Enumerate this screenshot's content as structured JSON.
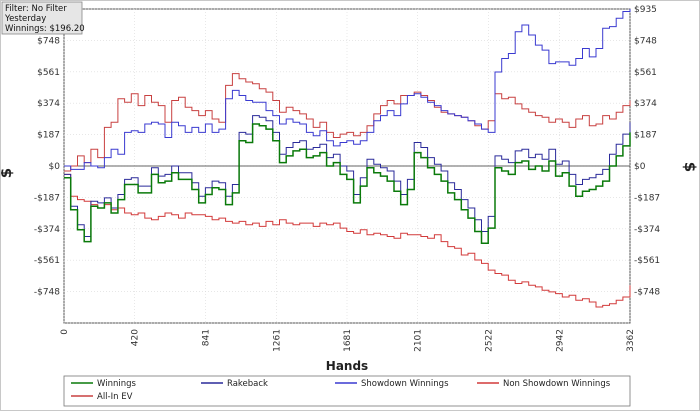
{
  "info_box": {
    "lines": [
      "Filter: No Filter",
      "Yesterday",
      "Winnings: $196.20"
    ]
  },
  "chart_data": {
    "type": "line",
    "xlabel": "Hands",
    "ylabel_left": "$",
    "ylabel_right": "$",
    "xlim": [
      0,
      3362
    ],
    "ylim": [
      -935,
      935
    ],
    "x_ticks": [
      0,
      420,
      841,
      1261,
      1681,
      2101,
      2522,
      2942,
      3362
    ],
    "y_ticks": [
      935,
      748,
      561,
      374,
      187,
      0,
      -187,
      -374,
      -561,
      -748,
      -935
    ],
    "y_tick_labels": [
      "$935",
      "$748",
      "$561",
      "$374",
      "$187",
      "$0",
      "-$187",
      "-$374",
      "-$561",
      "-$748",
      ""
    ],
    "grid": true,
    "legend_position": "bottom",
    "series": [
      {
        "name": "Winnings",
        "color": "#0a7a0a",
        "x": [
          0,
          40,
          80,
          120,
          160,
          200,
          240,
          280,
          320,
          360,
          400,
          440,
          480,
          520,
          560,
          600,
          640,
          680,
          720,
          760,
          800,
          840,
          880,
          920,
          960,
          1000,
          1040,
          1080,
          1120,
          1160,
          1200,
          1240,
          1280,
          1320,
          1360,
          1400,
          1440,
          1480,
          1520,
          1560,
          1600,
          1640,
          1680,
          1720,
          1760,
          1800,
          1840,
          1880,
          1920,
          1960,
          2000,
          2040,
          2080,
          2120,
          2160,
          2200,
          2240,
          2280,
          2320,
          2360,
          2400,
          2440,
          2480,
          2520,
          2560,
          2600,
          2640,
          2680,
          2720,
          2760,
          2800,
          2840,
          2880,
          2920,
          2960,
          3000,
          3040,
          3080,
          3120,
          3160,
          3200,
          3240,
          3280,
          3320,
          3362
        ],
        "values": [
          -70,
          -260,
          -380,
          -450,
          -240,
          -250,
          -220,
          -280,
          -200,
          -110,
          -110,
          -160,
          -160,
          -50,
          -100,
          -90,
          -40,
          -80,
          -80,
          -140,
          -220,
          -170,
          -130,
          -140,
          -230,
          -160,
          150,
          140,
          250,
          240,
          220,
          150,
          20,
          60,
          90,
          100,
          50,
          60,
          80,
          0,
          20,
          -50,
          -80,
          -220,
          -120,
          -10,
          -40,
          -60,
          -90,
          -150,
          -230,
          -140,
          80,
          50,
          -10,
          -50,
          -90,
          -160,
          -200,
          -260,
          -310,
          -390,
          -460,
          -370,
          -10,
          -30,
          -50,
          20,
          30,
          -20,
          0,
          -30,
          30,
          -60,
          -40,
          -120,
          -180,
          -150,
          -140,
          -120,
          -90,
          0,
          60,
          120,
          200
        ],
        "width": 1.5
      },
      {
        "name": "Rakeback",
        "color": "#2a2a9a",
        "x": [
          0,
          40,
          80,
          120,
          160,
          200,
          240,
          280,
          320,
          360,
          400,
          440,
          480,
          520,
          560,
          600,
          640,
          680,
          720,
          760,
          800,
          840,
          880,
          920,
          960,
          1000,
          1040,
          1080,
          1120,
          1160,
          1200,
          1240,
          1280,
          1320,
          1360,
          1400,
          1440,
          1480,
          1520,
          1560,
          1600,
          1640,
          1680,
          1720,
          1760,
          1800,
          1840,
          1880,
          1920,
          1960,
          2000,
          2040,
          2080,
          2120,
          2160,
          2200,
          2240,
          2280,
          2320,
          2360,
          2400,
          2440,
          2480,
          2520,
          2560,
          2600,
          2640,
          2680,
          2720,
          2760,
          2800,
          2840,
          2880,
          2920,
          2960,
          3000,
          3040,
          3080,
          3120,
          3160,
          3200,
          3240,
          3280,
          3320,
          3362
        ],
        "values": [
          -50,
          -240,
          -350,
          -420,
          -210,
          -220,
          -190,
          -250,
          -170,
          -80,
          -70,
          -120,
          -120,
          -10,
          -60,
          -50,
          0,
          -40,
          -40,
          -100,
          -180,
          -130,
          -90,
          -100,
          -180,
          -110,
          200,
          190,
          300,
          290,
          270,
          200,
          70,
          110,
          140,
          150,
          100,
          110,
          130,
          50,
          70,
          0,
          -30,
          -170,
          -70,
          40,
          10,
          -10,
          -30,
          -90,
          -170,
          -80,
          140,
          110,
          50,
          10,
          -30,
          -100,
          -140,
          -200,
          -250,
          -320,
          -390,
          -300,
          60,
          40,
          20,
          90,
          100,
          50,
          70,
          40,
          100,
          10,
          30,
          -50,
          -110,
          -80,
          -70,
          -50,
          -20,
          70,
          130,
          190,
          260
        ],
        "width": 1
      },
      {
        "name": "Showdown Winnings",
        "color": "#3a3ad0",
        "x": [
          0,
          40,
          80,
          120,
          160,
          200,
          240,
          280,
          320,
          360,
          400,
          440,
          480,
          520,
          560,
          600,
          640,
          680,
          720,
          760,
          800,
          840,
          880,
          920,
          960,
          1000,
          1040,
          1080,
          1120,
          1160,
          1200,
          1240,
          1280,
          1320,
          1360,
          1400,
          1440,
          1480,
          1520,
          1560,
          1600,
          1640,
          1680,
          1720,
          1760,
          1800,
          1840,
          1880,
          1920,
          1960,
          2000,
          2040,
          2080,
          2120,
          2160,
          2200,
          2240,
          2280,
          2320,
          2360,
          2400,
          2440,
          2480,
          2520,
          2560,
          2600,
          2640,
          2680,
          2720,
          2760,
          2800,
          2840,
          2880,
          2920,
          2960,
          3000,
          3040,
          3080,
          3120,
          3160,
          3200,
          3240,
          3280,
          3320,
          3362
        ],
        "values": [
          0,
          -20,
          -20,
          20,
          0,
          -10,
          50,
          100,
          70,
          200,
          210,
          200,
          250,
          260,
          250,
          170,
          260,
          240,
          200,
          230,
          200,
          250,
          200,
          220,
          400,
          450,
          420,
          390,
          380,
          380,
          330,
          300,
          250,
          280,
          260,
          250,
          200,
          180,
          210,
          150,
          120,
          140,
          150,
          130,
          150,
          200,
          270,
          300,
          330,
          300,
          370,
          420,
          430,
          410,
          380,
          360,
          330,
          310,
          300,
          290,
          270,
          250,
          220,
          200,
          560,
          640,
          670,
          800,
          840,
          780,
          720,
          690,
          610,
          620,
          620,
          600,
          640,
          700,
          650,
          700,
          820,
          830,
          880,
          920,
          935
        ],
        "width": 1
      },
      {
        "name": "Non Showdown Winnings",
        "color": "#d23a3a",
        "x": [
          0,
          40,
          80,
          120,
          160,
          200,
          240,
          280,
          320,
          360,
          400,
          440,
          480,
          520,
          560,
          600,
          640,
          680,
          720,
          760,
          800,
          840,
          880,
          920,
          960,
          1000,
          1040,
          1080,
          1120,
          1160,
          1200,
          1240,
          1280,
          1320,
          1360,
          1400,
          1440,
          1480,
          1520,
          1560,
          1600,
          1640,
          1680,
          1720,
          1760,
          1800,
          1840,
          1880,
          1920,
          1960,
          2000,
          2040,
          2080,
          2120,
          2160,
          2200,
          2240,
          2280,
          2320,
          2360,
          2400,
          2440,
          2480,
          2520,
          2560,
          2600,
          2640,
          2680,
          2720,
          2760,
          2800,
          2840,
          2880,
          2920,
          2960,
          3000,
          3040,
          3080,
          3120,
          3160,
          3200,
          3240,
          3280,
          3320,
          3362
        ],
        "values": [
          -50,
          -180,
          -200,
          -210,
          -230,
          -250,
          -230,
          -260,
          -250,
          -280,
          -290,
          -280,
          -310,
          -320,
          -300,
          -280,
          -290,
          -310,
          -280,
          -290,
          -290,
          -300,
          -320,
          -310,
          -330,
          -340,
          -330,
          -350,
          -340,
          -360,
          -330,
          -350,
          -320,
          -340,
          -350,
          -340,
          -340,
          -360,
          -340,
          -350,
          -340,
          -370,
          -390,
          -400,
          -380,
          -410,
          -400,
          -410,
          -420,
          -430,
          -400,
          -410,
          -410,
          -420,
          -430,
          -410,
          -450,
          -480,
          -490,
          -530,
          -520,
          -560,
          -580,
          -620,
          -640,
          -650,
          -680,
          -700,
          -690,
          -710,
          -720,
          -740,
          -750,
          -760,
          -780,
          -770,
          -800,
          -790,
          -810,
          -840,
          -830,
          -820,
          -800,
          -780,
          -710
        ],
        "width": 1
      },
      {
        "name": "All-In EV",
        "color": "#c84040",
        "x": [
          0,
          40,
          80,
          120,
          160,
          200,
          240,
          280,
          320,
          360,
          400,
          440,
          480,
          520,
          560,
          600,
          640,
          680,
          720,
          760,
          800,
          840,
          880,
          920,
          960,
          1000,
          1040,
          1080,
          1120,
          1160,
          1200,
          1240,
          1280,
          1320,
          1360,
          1400,
          1440,
          1480,
          1520,
          1560,
          1600,
          1640,
          1680,
          1720,
          1760,
          1800,
          1840,
          1880,
          1920,
          1960,
          2000,
          2040,
          2080,
          2120,
          2160,
          2200,
          2240,
          2280,
          2320,
          2360,
          2400,
          2440,
          2480,
          2520,
          2560,
          2600,
          2640,
          2680,
          2720,
          2760,
          2800,
          2840,
          2880,
          2920,
          2960,
          3000,
          3040,
          3080,
          3120,
          3160,
          3200,
          3240,
          3280,
          3320,
          3362
        ],
        "values": [
          -30,
          0,
          60,
          20,
          100,
          50,
          230,
          260,
          400,
          380,
          430,
          360,
          420,
          380,
          360,
          260,
          390,
          410,
          350,
          330,
          300,
          330,
          280,
          260,
          480,
          550,
          520,
          500,
          490,
          460,
          440,
          390,
          320,
          350,
          330,
          310,
          280,
          230,
          260,
          200,
          170,
          190,
          200,
          180,
          200,
          240,
          310,
          360,
          390,
          370,
          420,
          420,
          440,
          420,
          390,
          350,
          320,
          310,
          300,
          290,
          270,
          240,
          220,
          270,
          430,
          400,
          410,
          370,
          340,
          320,
          300,
          290,
          260,
          280,
          260,
          230,
          280,
          300,
          240,
          250,
          300,
          280,
          320,
          360,
          390
        ],
        "width": 1
      }
    ]
  }
}
